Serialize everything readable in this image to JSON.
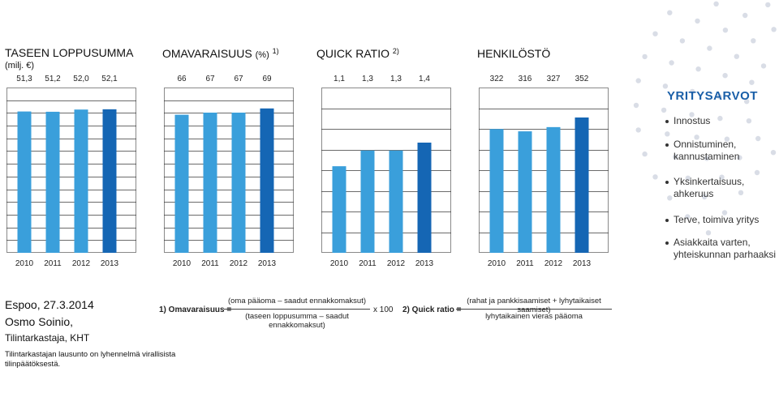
{
  "chart_data": [
    {
      "type": "bar",
      "title": "TASEEN LOPPUSUMMA",
      "subtitle": "(milj. €)",
      "categories": [
        "2010",
        "2011",
        "2012",
        "2013"
      ],
      "values": [
        51.3,
        51.2,
        52.0,
        52.1
      ],
      "value_labels": [
        "51,3",
        "51,2",
        "52,0",
        "52,1"
      ],
      "bar_colors": [
        "#3a9fdb",
        "#3a9fdb",
        "#3a9fdb",
        "#1566b4"
      ],
      "ylim": [
        0,
        60
      ],
      "grid": true
    },
    {
      "type": "bar",
      "title": "OMAVARAISUUS",
      "unit": "(%)",
      "footnote": "1)",
      "categories": [
        "2010",
        "2011",
        "2012",
        "2013"
      ],
      "values": [
        66,
        67,
        67,
        69
      ],
      "value_labels": [
        "66",
        "67",
        "67",
        "69"
      ],
      "bar_colors": [
        "#3a9fdb",
        "#3a9fdb",
        "#3a9fdb",
        "#1566b4"
      ],
      "ylim": [
        0,
        79
      ],
      "grid": true
    },
    {
      "type": "bar",
      "title": "QUICK RATIO",
      "footnote": "2)",
      "categories": [
        "2010",
        "2011",
        "2012",
        "2013"
      ],
      "values": [
        1.1,
        1.3,
        1.3,
        1.4
      ],
      "value_labels": [
        "1,1",
        "1,3",
        "1,3",
        "1,4"
      ],
      "bar_colors": [
        "#3a9fdb",
        "#3a9fdb",
        "#3a9fdb",
        "#1566b4"
      ],
      "ylim": [
        0,
        2.1
      ],
      "grid": false
    },
    {
      "type": "bar",
      "title": "HENKILÖSTÖ",
      "categories": [
        "2010",
        "2011",
        "2012",
        "2013"
      ],
      "values": [
        322,
        316,
        327,
        352
      ],
      "value_labels": [
        "322",
        "316",
        "327",
        "352"
      ],
      "bar_colors": [
        "#3a9fdb",
        "#3a9fdb",
        "#3a9fdb",
        "#1566b4"
      ],
      "ylim": [
        0,
        430
      ],
      "grid": false
    }
  ],
  "values_side": {
    "title": "YRITYSARVOT",
    "items": [
      "Innostus",
      "Onnistuminen,\nkannustaminen",
      "Yksinkertaisuus,\nahkeruus",
      "Terve, toimiva yritys",
      "Asiakkaita varten,\nyhteiskunnan parhaaksi"
    ],
    "dot_color": "#d9dde6"
  },
  "signature": {
    "place_date": "Espoo, 27.3.2014",
    "name": "Osmo Soinio,",
    "role": "Tilintarkastaja, KHT",
    "note": "Tilintarkastajan lausunto on lyhennelmä virallisista\ntilinpäätöksestä."
  },
  "formulas": {
    "f1_label": "1) Omavaraisuus =",
    "f1_numerator": "(oma pääoma – saadut ennakkomaksut)",
    "f1_denominator": "(taseen loppusumma – saadut ennakkomaksut)",
    "f1_multiplier": "x 100",
    "f2_label": "2) Quick ratio =",
    "f2_numerator": "(rahat ja pankkisaamiset + lyhytaikaiset saamiset)",
    "f2_denominator": "lyhytaikainen vieras pääoma"
  }
}
